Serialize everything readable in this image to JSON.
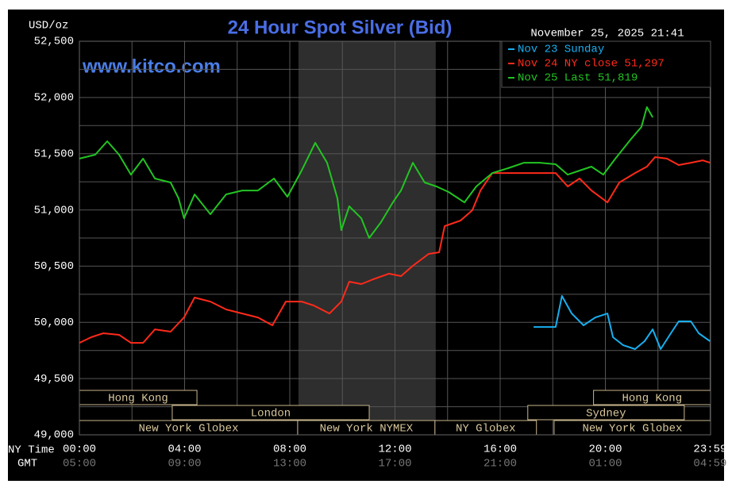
{
  "chart_data": {
    "type": "line",
    "title": "24 Hour Spot Silver (Bid)",
    "y_label": "USD/oz",
    "watermark": "www.kitco.com",
    "timestamp": "November 25, 2025 21:41",
    "x_label": "NY Time",
    "x2_label": "GMT",
    "xlim": [
      0,
      24
    ],
    "xticks": [
      {
        "value": 0,
        "label": "00:00"
      },
      {
        "value": 4,
        "label": "04:00"
      },
      {
        "value": 8,
        "label": "08:00"
      },
      {
        "value": 12,
        "label": "12:00"
      },
      {
        "value": 16,
        "label": "16:00"
      },
      {
        "value": 20,
        "label": "20:00"
      },
      {
        "value": 23.983,
        "label": "23:59"
      }
    ],
    "x2_tick_labels": [
      "05:00",
      "09:00",
      "13:00",
      "17:00",
      "21:00",
      "01:00",
      "04:59"
    ],
    "minor_xticks": [
      2,
      6,
      10,
      14,
      18,
      22
    ],
    "ylim": [
      49000,
      52500
    ],
    "yticks": [
      {
        "value": 49000,
        "label": "49,000"
      },
      {
        "value": 49500,
        "label": "49,500"
      },
      {
        "value": 50000,
        "label": "50,000"
      },
      {
        "value": 50500,
        "label": "50,500"
      },
      {
        "value": 51000,
        "label": "51,000"
      },
      {
        "value": 51500,
        "label": "51,500"
      },
      {
        "value": 52000,
        "label": "52,000"
      },
      {
        "value": 52500,
        "label": "52,500"
      }
    ],
    "minor_yticks": [
      49250,
      49750,
      50250,
      50750,
      51250,
      51750,
      52250
    ],
    "grid": true,
    "shaded_span": [
      8.33,
      13.55
    ],
    "sessions": [
      {
        "label": "Hong Kong",
        "row": 0,
        "start": 0,
        "end": 4.47
      },
      {
        "label": "Hong Kong",
        "row": 0,
        "start": 19.55,
        "end": 24
      },
      {
        "label": "London",
        "row": 1,
        "start": 3.53,
        "end": 11.02
      },
      {
        "label": "Sydney",
        "row": 1,
        "start": 17.05,
        "end": 23.0
      },
      {
        "label": "New York Globex",
        "row": 2,
        "start": 0,
        "end": 8.3
      },
      {
        "label": "New York NYMEX",
        "row": 2,
        "start": 8.3,
        "end": 13.52
      },
      {
        "label": "NY Globex",
        "row": 2,
        "start": 13.52,
        "end": 17.38
      },
      {
        "label": "New York Globex",
        "row": 2,
        "start": 18.05,
        "end": 24
      }
    ],
    "series": [
      {
        "name": "Nov 23 Sunday",
        "color": "#18aff0",
        "x": [
          17.27,
          18.11,
          18.35,
          18.72,
          19.17,
          19.62,
          20.08,
          20.29,
          20.68,
          21.13,
          21.49,
          21.8,
          22.1,
          22.49,
          22.79,
          23.25,
          23.55,
          23.98
        ],
        "values": [
          49959,
          49959,
          50235,
          50079,
          49974,
          50044,
          50079,
          49868,
          49797,
          49762,
          49833,
          49938,
          49762,
          49903,
          50009,
          50009,
          49903,
          49833
        ]
      },
      {
        "name": "Nov 24 NY close 51,297",
        "color": "#ff2a1a",
        "x": [
          0,
          0.45,
          0.91,
          1.51,
          1.96,
          2.42,
          2.87,
          3.47,
          3.98,
          4.38,
          4.98,
          5.58,
          6.19,
          6.79,
          7.34,
          7.85,
          8.45,
          8.91,
          9.51,
          9.96,
          10.26,
          10.72,
          11.17,
          11.77,
          12.23,
          12.68,
          13.28,
          13.68,
          13.89,
          14.49,
          14.94,
          15.25,
          15.7,
          16.3,
          16.91,
          18.11,
          18.57,
          19.02,
          19.47,
          20.08,
          20.53,
          21.13,
          21.58,
          21.89,
          22.34,
          22.79,
          23.25,
          23.7,
          23.98
        ],
        "values": [
          49818,
          49868,
          49903,
          49889,
          49818,
          49818,
          49938,
          49917,
          50044,
          50221,
          50185,
          50115,
          50079,
          50044,
          49974,
          50185,
          50185,
          50150,
          50079,
          50185,
          50362,
          50341,
          50383,
          50433,
          50411,
          50503,
          50609,
          50623,
          50856,
          50905,
          50997,
          51173,
          51328,
          51328,
          51328,
          51328,
          51209,
          51279,
          51173,
          51067,
          51244,
          51328,
          51385,
          51470,
          51456,
          51399,
          51420,
          51441,
          51420
        ]
      },
      {
        "name": "Nov 25 Last 51,819",
        "color": "#22c422",
        "x": [
          0,
          0.6,
          1.06,
          1.51,
          1.96,
          2.42,
          2.87,
          3.47,
          3.77,
          3.98,
          4.38,
          4.98,
          5.58,
          6.19,
          6.79,
          7.4,
          7.91,
          8.45,
          8.97,
          9.42,
          9.81,
          9.96,
          10.26,
          10.72,
          11.02,
          11.47,
          11.92,
          12.23,
          12.68,
          13.13,
          13.58,
          14.04,
          14.64,
          15.09,
          15.7,
          16.3,
          16.91,
          17.51,
          18.11,
          18.57,
          19.02,
          19.47,
          19.92,
          20.38,
          20.98,
          21.37,
          21.58,
          21.8
        ],
        "values": [
          51456,
          51491,
          51611,
          51491,
          51314,
          51456,
          51279,
          51244,
          51103,
          50926,
          51138,
          50962,
          51138,
          51173,
          51173,
          51279,
          51117,
          51350,
          51597,
          51420,
          51103,
          50820,
          51032,
          50926,
          50750,
          50891,
          51067,
          51173,
          51420,
          51244,
          51209,
          51159,
          51067,
          51209,
          51328,
          51371,
          51420,
          51420,
          51406,
          51314,
          51350,
          51385,
          51314,
          51456,
          51632,
          51738,
          51914,
          51823
        ]
      }
    ]
  }
}
